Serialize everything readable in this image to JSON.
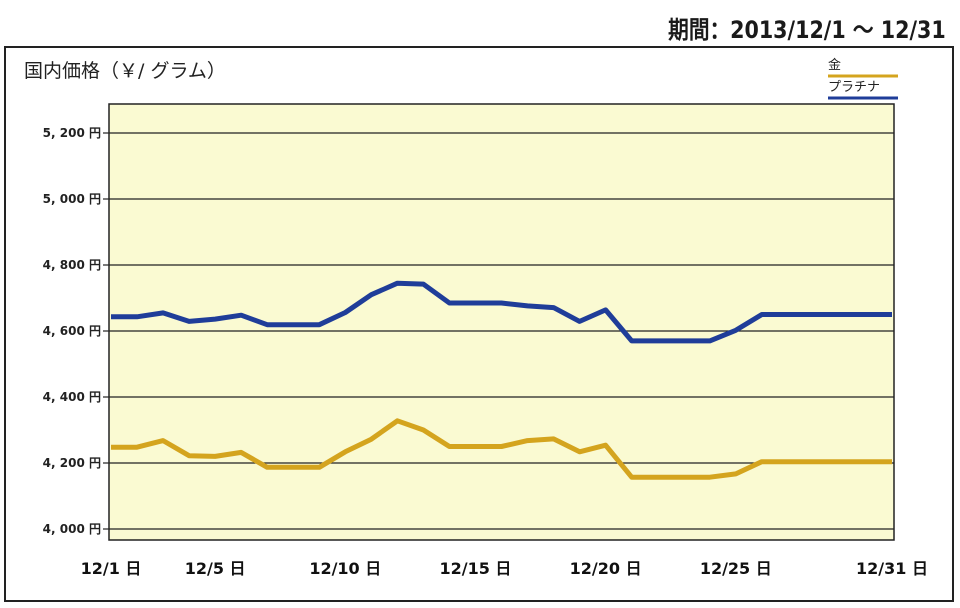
{
  "header": {
    "period": "期間：2013/12/1 〜 12/31"
  },
  "chart_data": {
    "type": "line",
    "title": "",
    "ylabel": "国内価格（￥/ グラム）",
    "xlabel": "",
    "ylim": [
      4000,
      5200
    ],
    "yticks": [
      {
        "value": 4000,
        "label": "4, 000 円"
      },
      {
        "value": 4200,
        "label": "4, 200 円"
      },
      {
        "value": 4400,
        "label": "4, 400 円"
      },
      {
        "value": 4600,
        "label": "4, 600 円"
      },
      {
        "value": 4800,
        "label": "4, 800 円"
      },
      {
        "value": 5000,
        "label": "5, 000 円"
      },
      {
        "value": 5200,
        "label": "5, 200 円"
      }
    ],
    "xlim": [
      1,
      31
    ],
    "xticks": [
      {
        "value": 1,
        "label": "12/1 日"
      },
      {
        "value": 5,
        "label": "12/5 日"
      },
      {
        "value": 10,
        "label": "12/10 日"
      },
      {
        "value": 15,
        "label": "12/15 日"
      },
      {
        "value": 20,
        "label": "12/20 日"
      },
      {
        "value": 25,
        "label": "12/25 日"
      },
      {
        "value": 31,
        "label": "12/31 日"
      }
    ],
    "grid": true,
    "legend_position": "top-right",
    "plot_background": "#fafad2",
    "series": [
      {
        "name": "金",
        "color": "#d4a41e",
        "x": [
          1,
          2,
          3,
          4,
          5,
          6,
          7,
          8,
          9,
          10,
          11,
          12,
          13,
          14,
          15,
          16,
          17,
          18,
          19,
          20,
          21,
          22,
          23,
          24,
          25,
          26,
          27,
          28,
          29,
          30,
          31
        ],
        "values": [
          4248,
          4248,
          4268,
          4222,
          4220,
          4232,
          4187,
          4187,
          4187,
          4234,
          4272,
          4328,
          4300,
          4250,
          4250,
          4250,
          4268,
          4273,
          4234,
          4254,
          4157,
          4157,
          4157,
          4157,
          4167,
          4204,
          4204,
          4204,
          4204,
          4204,
          4204
        ]
      },
      {
        "name": "プラチナ",
        "color": "#1f3d99",
        "x": [
          1,
          2,
          3,
          4,
          5,
          6,
          7,
          8,
          9,
          10,
          11,
          12,
          13,
          14,
          15,
          16,
          17,
          18,
          19,
          20,
          21,
          22,
          23,
          24,
          25,
          26,
          27,
          28,
          29,
          30,
          31
        ],
        "values": [
          4643,
          4643,
          4655,
          4629,
          4636,
          4648,
          4619,
          4619,
          4619,
          4656,
          4710,
          4745,
          4742,
          4685,
          4685,
          4685,
          4676,
          4671,
          4629,
          4664,
          4570,
          4570,
          4570,
          4570,
          4602,
          4650,
          4650,
          4650,
          4650,
          4650,
          4650
        ]
      }
    ]
  }
}
